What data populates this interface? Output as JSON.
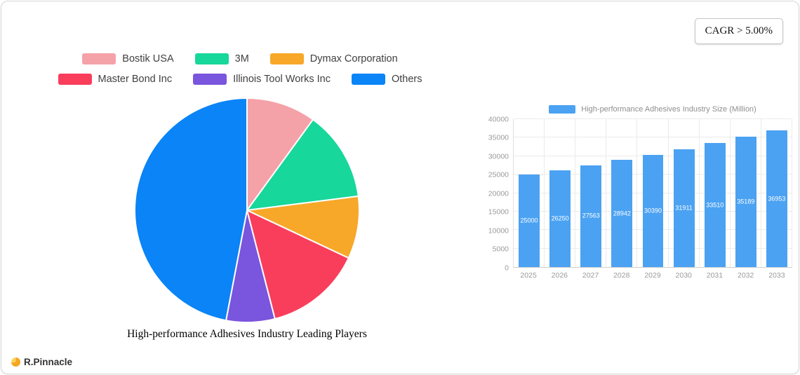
{
  "badge": {
    "label": "CAGR > 5.00%"
  },
  "logo": {
    "brand": "R.Pinnacle"
  },
  "icons": {
    "logo": "circle-pie-icon"
  },
  "chart_data": [
    {
      "type": "pie",
      "title": "High-performance Adhesives Industry Leading Players",
      "legend_position": "top",
      "start_angle_deg": 0,
      "series": [
        {
          "label": "Bostik USA",
          "value": 10,
          "color": "#f5a1a8"
        },
        {
          "label": "3M",
          "value": 13,
          "color": "#17d79b"
        },
        {
          "label": "Dymax Corporation",
          "value": 9,
          "color": "#f7a829"
        },
        {
          "label": "Master Bond Inc",
          "value": 14,
          "color": "#f93e5c"
        },
        {
          "label": "Illinois Tool Works Inc",
          "value": 7,
          "color": "#7a55dd"
        },
        {
          "label": "Others",
          "value": 47,
          "color": "#0a84f6"
        }
      ]
    },
    {
      "type": "bar",
      "legend": "High-performance Adhesives Industry Size (Million)",
      "categories": [
        "2025",
        "2026",
        "2027",
        "2028",
        "2029",
        "2030",
        "2031",
        "2032",
        "2033"
      ],
      "values": [
        25000,
        26250,
        27563,
        28942,
        30390,
        31911,
        33510,
        35189,
        36953
      ],
      "ylim": [
        0,
        40000
      ],
      "ytick_step": 5000,
      "grid": true,
      "bar_color": "#4ba2f2",
      "value_label_color": "#ffffff"
    }
  ]
}
